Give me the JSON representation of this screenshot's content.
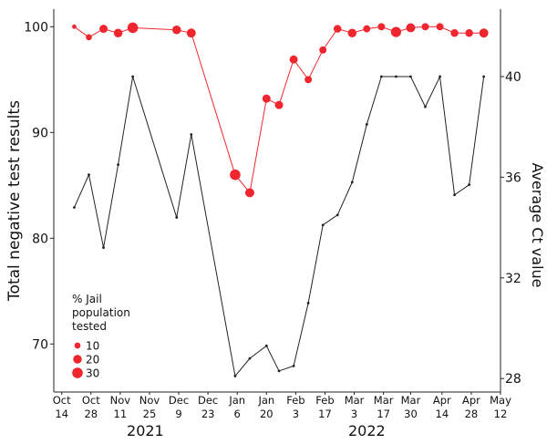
{
  "chart_data": {
    "type": "line",
    "title": "",
    "ylabel_left": "Total negative test results",
    "ylabel_right": "Average Ct value",
    "ylim_left": [
      65,
      102
    ],
    "ylim_right": [
      27.5,
      42.5
    ],
    "yticks_left": [
      70,
      80,
      90,
      100
    ],
    "yticks_right": [
      28,
      32,
      36,
      40
    ],
    "x_start": "2021-10-14",
    "x_end": "2022-05-12",
    "xticks": [
      {
        "date": "2021-10-14",
        "m": "Oct",
        "d": "14"
      },
      {
        "date": "2021-10-28",
        "m": "Oct",
        "d": "28"
      },
      {
        "date": "2021-11-11",
        "m": "Nov",
        "d": "11"
      },
      {
        "date": "2021-11-25",
        "m": "Nov",
        "d": "25"
      },
      {
        "date": "2021-12-09",
        "m": "Dec",
        "d": "9"
      },
      {
        "date": "2021-12-23",
        "m": "Dec",
        "d": "23"
      },
      {
        "date": "2022-01-06",
        "m": "Jan",
        "d": "6"
      },
      {
        "date": "2022-01-20",
        "m": "Jan",
        "d": "20"
      },
      {
        "date": "2022-02-03",
        "m": "Feb",
        "d": "3"
      },
      {
        "date": "2022-02-17",
        "m": "Feb",
        "d": "17"
      },
      {
        "date": "2022-03-03",
        "m": "Mar",
        "d": "3"
      },
      {
        "date": "2022-03-17",
        "m": "Mar",
        "d": "17"
      },
      {
        "date": "2022-03-30",
        "m": "Mar",
        "d": "30"
      },
      {
        "date": "2022-04-14",
        "m": "Apr",
        "d": "14"
      },
      {
        "date": "2022-04-28",
        "m": "Apr",
        "d": "28"
      },
      {
        "date": "2022-05-12",
        "m": "May",
        "d": "12"
      }
    ],
    "year_labels": [
      {
        "label": "2021",
        "date": "2021-11-23"
      },
      {
        "label": "2022",
        "date": "2022-03-09"
      }
    ],
    "series": [
      {
        "name": "Total negative test results",
        "axis": "left",
        "color": "#f0262e",
        "points": [
          {
            "date": "2021-10-20",
            "value": 100.0,
            "pct_tested": 5
          },
          {
            "date": "2021-10-27",
            "value": 99.0,
            "pct_tested": 10
          },
          {
            "date": "2021-11-03",
            "value": 99.8,
            "pct_tested": 18
          },
          {
            "date": "2021-11-10",
            "value": 99.4,
            "pct_tested": 20
          },
          {
            "date": "2021-11-17",
            "value": 99.9,
            "pct_tested": 30
          },
          {
            "date": "2021-12-08",
            "value": 99.7,
            "pct_tested": 20
          },
          {
            "date": "2021-12-15",
            "value": 99.4,
            "pct_tested": 22
          },
          {
            "date": "2022-01-05",
            "value": 86.0,
            "pct_tested": 30
          },
          {
            "date": "2022-01-12",
            "value": 84.3,
            "pct_tested": 22
          },
          {
            "date": "2022-01-20",
            "value": 93.2,
            "pct_tested": 18
          },
          {
            "date": "2022-01-26",
            "value": 92.6,
            "pct_tested": 18
          },
          {
            "date": "2022-02-02",
            "value": 96.9,
            "pct_tested": 18
          },
          {
            "date": "2022-02-09",
            "value": 95.0,
            "pct_tested": 14
          },
          {
            "date": "2022-02-16",
            "value": 97.8,
            "pct_tested": 14
          },
          {
            "date": "2022-02-23",
            "value": 99.8,
            "pct_tested": 16
          },
          {
            "date": "2022-03-02",
            "value": 99.4,
            "pct_tested": 20
          },
          {
            "date": "2022-03-09",
            "value": 99.8,
            "pct_tested": 14
          },
          {
            "date": "2022-03-16",
            "value": 100.0,
            "pct_tested": 14
          },
          {
            "date": "2022-03-23",
            "value": 99.5,
            "pct_tested": 28
          },
          {
            "date": "2022-03-30",
            "value": 99.9,
            "pct_tested": 22
          },
          {
            "date": "2022-04-06",
            "value": 100.0,
            "pct_tested": 14
          },
          {
            "date": "2022-04-13",
            "value": 100.0,
            "pct_tested": 14
          },
          {
            "date": "2022-04-20",
            "value": 99.4,
            "pct_tested": 16
          },
          {
            "date": "2022-04-27",
            "value": 99.4,
            "pct_tested": 16
          },
          {
            "date": "2022-05-04",
            "value": 99.4,
            "pct_tested": 22
          }
        ]
      },
      {
        "name": "Average Ct value",
        "axis": "right",
        "color": "#222222",
        "points": [
          {
            "date": "2021-10-20",
            "value": 34.8
          },
          {
            "date": "2021-10-27",
            "value": 36.1
          },
          {
            "date": "2021-11-03",
            "value": 33.2
          },
          {
            "date": "2021-11-10",
            "value": 36.5
          },
          {
            "date": "2021-11-17",
            "value": 40.0
          },
          {
            "date": "2021-12-08",
            "value": 34.4
          },
          {
            "date": "2021-12-15",
            "value": 37.7
          },
          {
            "date": "2022-01-05",
            "value": 28.1
          },
          {
            "date": "2022-01-12",
            "value": 28.8
          },
          {
            "date": "2022-01-20",
            "value": 29.3
          },
          {
            "date": "2022-01-26",
            "value": 28.3
          },
          {
            "date": "2022-02-02",
            "value": 28.5
          },
          {
            "date": "2022-02-09",
            "value": 31.0
          },
          {
            "date": "2022-02-16",
            "value": 34.1
          },
          {
            "date": "2022-02-23",
            "value": 34.5
          },
          {
            "date": "2022-03-02",
            "value": 35.8
          },
          {
            "date": "2022-03-09",
            "value": 38.1
          },
          {
            "date": "2022-03-16",
            "value": 40.0
          },
          {
            "date": "2022-03-23",
            "value": 40.0
          },
          {
            "date": "2022-03-30",
            "value": 40.0
          },
          {
            "date": "2022-04-06",
            "value": 38.8
          },
          {
            "date": "2022-04-13",
            "value": 40.0
          },
          {
            "date": "2022-04-20",
            "value": 35.3
          },
          {
            "date": "2022-04-27",
            "value": 35.7
          },
          {
            "date": "2022-05-04",
            "value": 40.0
          }
        ]
      }
    ],
    "legend": {
      "title_lines": [
        "% Jail",
        "population",
        "tested"
      ],
      "entries": [
        {
          "label": "10",
          "value": 10
        },
        {
          "label": "20",
          "value": 20
        },
        {
          "label": "30",
          "value": 30
        }
      ],
      "placement": "bottom-left"
    },
    "grid": false
  }
}
